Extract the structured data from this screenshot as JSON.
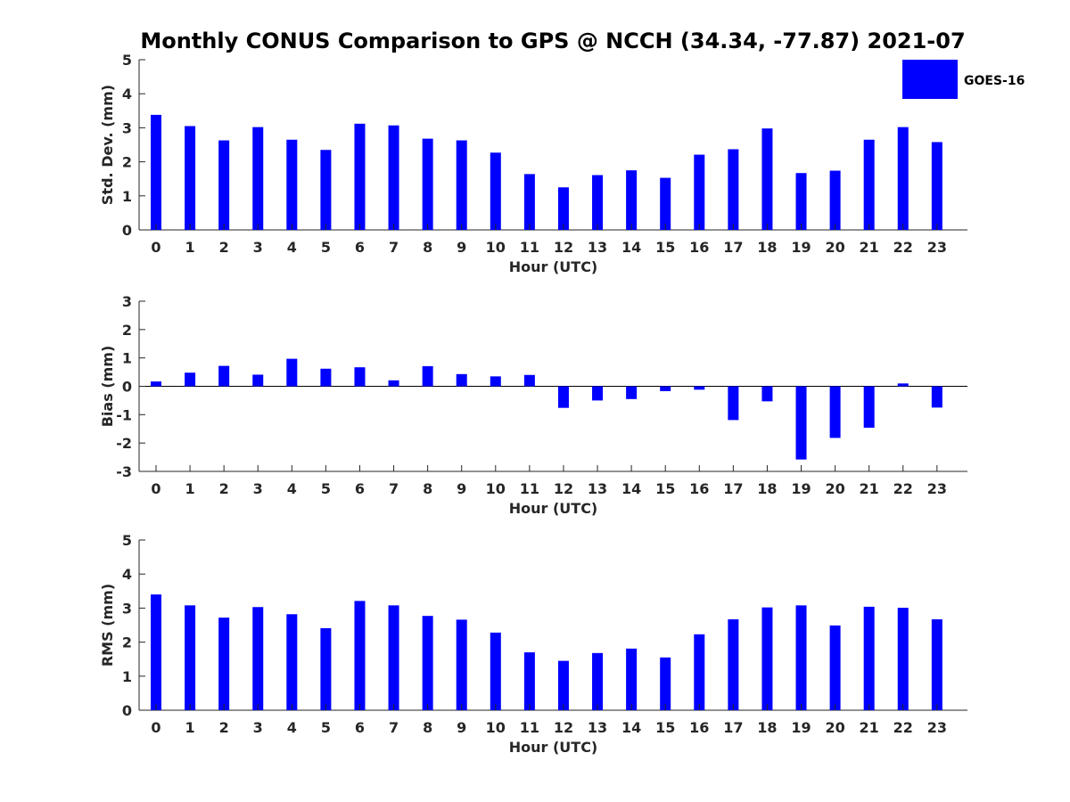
{
  "title": "Monthly CONUS Comparison to GPS @ NCCH (34.34, -77.87) 2021-07",
  "legend": {
    "label": "GOES-16",
    "color": "#0000ff",
    "placement": "top-right"
  },
  "chart_data": [
    {
      "type": "bar",
      "name": "std-dev",
      "categories": [
        "0",
        "1",
        "2",
        "3",
        "4",
        "5",
        "6",
        "7",
        "8",
        "9",
        "10",
        "11",
        "12",
        "13",
        "14",
        "15",
        "16",
        "17",
        "18",
        "19",
        "20",
        "21",
        "22",
        "23"
      ],
      "series": [
        {
          "name": "GOES-16",
          "color": "#0000ff",
          "values": [
            3.38,
            3.05,
            2.63,
            3.02,
            2.65,
            2.35,
            3.12,
            3.07,
            2.68,
            2.63,
            2.27,
            1.64,
            1.25,
            1.61,
            1.75,
            1.53,
            2.21,
            2.37,
            2.98,
            1.67,
            1.74,
            2.65,
            3.02,
            2.58
          ]
        }
      ],
      "xlabel": "Hour (UTC)",
      "ylabel": "Std. Dev. (mm)",
      "ylim": [
        0,
        5
      ],
      "yticks": [
        "0",
        "1",
        "2",
        "3",
        "4",
        "5"
      ],
      "grid": false
    },
    {
      "type": "bar",
      "name": "bias",
      "categories": [
        "0",
        "1",
        "2",
        "3",
        "4",
        "5",
        "6",
        "7",
        "8",
        "9",
        "10",
        "11",
        "12",
        "13",
        "14",
        "15",
        "16",
        "17",
        "18",
        "19",
        "20",
        "21",
        "22",
        "23"
      ],
      "series": [
        {
          "name": "GOES-16",
          "color": "#0000ff",
          "values": [
            0.17,
            0.48,
            0.72,
            0.41,
            0.97,
            0.62,
            0.67,
            0.21,
            0.71,
            0.43,
            0.35,
            0.4,
            -0.76,
            -0.5,
            -0.45,
            -0.17,
            -0.12,
            -1.19,
            -0.53,
            -2.58,
            -1.82,
            -1.46,
            0.1,
            -0.75
          ]
        }
      ],
      "xlabel": "Hour (UTC)",
      "ylabel": "Bias (mm)",
      "ylim": [
        -3,
        3
      ],
      "yticks": [
        "-3",
        "-2",
        "-1",
        "0",
        "1",
        "2",
        "3"
      ],
      "grid": false
    },
    {
      "type": "bar",
      "name": "rms",
      "categories": [
        "0",
        "1",
        "2",
        "3",
        "4",
        "5",
        "6",
        "7",
        "8",
        "9",
        "10",
        "11",
        "12",
        "13",
        "14",
        "15",
        "16",
        "17",
        "18",
        "19",
        "20",
        "21",
        "22",
        "23"
      ],
      "series": [
        {
          "name": "GOES-16",
          "color": "#0000ff",
          "values": [
            3.4,
            3.08,
            2.72,
            3.03,
            2.82,
            2.41,
            3.21,
            3.08,
            2.77,
            2.66,
            2.28,
            1.7,
            1.45,
            1.68,
            1.81,
            1.55,
            2.23,
            2.67,
            3.02,
            3.08,
            2.49,
            3.04,
            3.01,
            2.67
          ]
        }
      ],
      "xlabel": "Hour (UTC)",
      "ylabel": "RMS (mm)",
      "ylim": [
        0,
        5
      ],
      "yticks": [
        "0",
        "1",
        "2",
        "3",
        "4",
        "5"
      ],
      "grid": false
    }
  ]
}
